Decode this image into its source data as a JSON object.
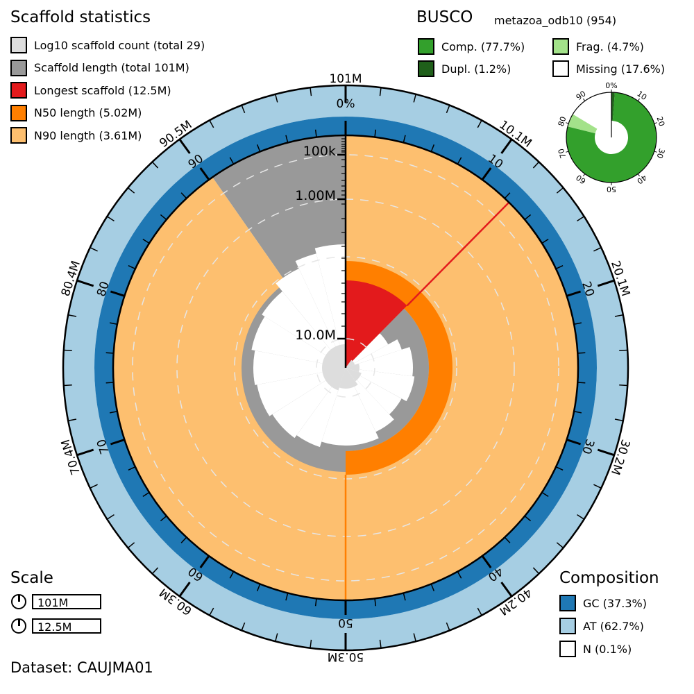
{
  "scaffold_stats": {
    "title": "Scaffold statistics",
    "legend": [
      {
        "label": "Log10 scaffold count (total 29)",
        "color": "#dddddd"
      },
      {
        "label": "Scaffold length (total 101M)",
        "color": "#999999"
      },
      {
        "label": "Longest scaffold (12.5M)",
        "color": "#e31a1c"
      },
      {
        "label": "N50 length (5.02M)",
        "color": "#ff7f00"
      },
      {
        "label": "N90 length (3.61M)",
        "color": "#fdbf6f"
      }
    ]
  },
  "busco": {
    "title": "BUSCO",
    "lineage": "metazoa_odb10 (954)",
    "legend": [
      {
        "label": "Comp. (77.7%)",
        "color": "#33a02c"
      },
      {
        "label": "Frag. (4.7%)",
        "color": "#a3e28a"
      },
      {
        "label": "Dupl. (1.2%)",
        "color": "#1f5f1a"
      },
      {
        "label": "Missing (17.6%)",
        "color": "#ffffff"
      }
    ],
    "tick_labels": [
      "0%",
      "10",
      "20",
      "30",
      "40",
      "50",
      "60",
      "70",
      "80",
      "90"
    ]
  },
  "scale": {
    "title": "Scale",
    "items": [
      "101M",
      "12.5M"
    ]
  },
  "composition": {
    "title": "Composition",
    "legend": [
      {
        "label": "GC (37.3%)",
        "color": "#1f78b4"
      },
      {
        "label": "AT (62.7%)",
        "color": "#a6cee3"
      },
      {
        "label": "N (0.1%)",
        "color": "#ffffff"
      }
    ]
  },
  "dataset": "Dataset: CAUJMA01",
  "chart_data": {
    "type": "snail",
    "total_length": "101M",
    "scaffold_count": 29,
    "longest_scaffold": "12.5M",
    "longest_scaffold_percent": 12.4,
    "n50": "5.02M",
    "n90": "3.61M",
    "n90_percent": 90.3,
    "gc_percent": 37.3,
    "at_percent": 62.7,
    "n_percent": 0.1,
    "busco_complete": 77.7,
    "busco_duplicated": 1.2,
    "busco_fragmented": 4.7,
    "busco_missing": 17.6,
    "percent_tick_labels": [
      "0%",
      "10",
      "20",
      "30",
      "40",
      "50",
      "60",
      "70",
      "80",
      "90"
    ],
    "length_tick_labels": [
      "101M",
      "10.1M",
      "20.1M",
      "30.2M",
      "40.2M",
      "50.3M",
      "60.3M",
      "70.4M",
      "80.4M",
      "90.5M"
    ],
    "radial_axis_labels": [
      "100k",
      "1.00M",
      "10.0M"
    ]
  }
}
